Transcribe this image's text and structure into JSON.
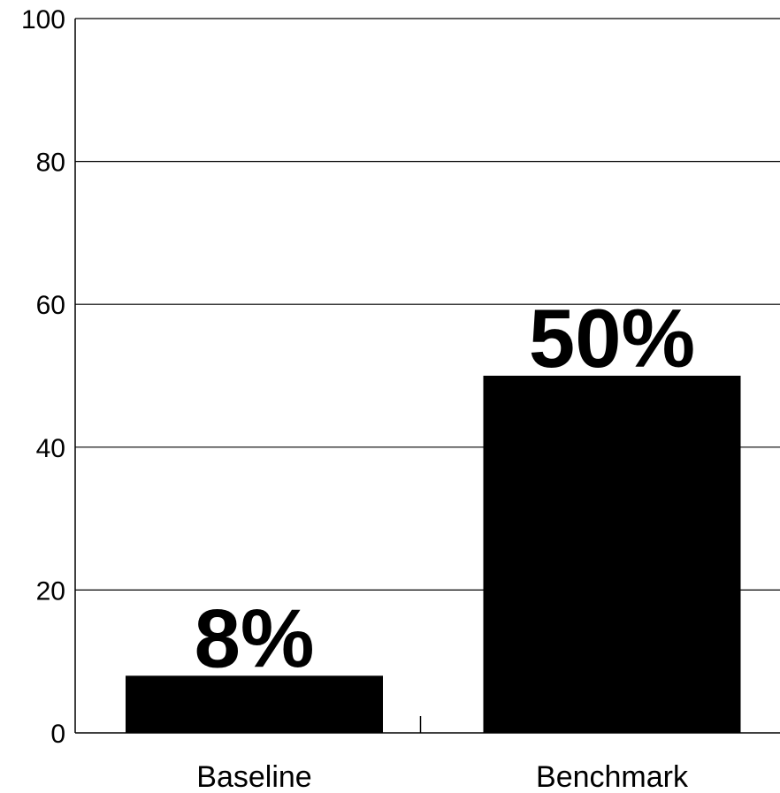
{
  "chart_data": {
    "type": "bar",
    "categories": [
      "Baseline",
      "Benchmark"
    ],
    "values": [
      8,
      50
    ],
    "data_labels": [
      "8%",
      "50%"
    ],
    "title": "",
    "xlabel": "",
    "ylabel": "",
    "ylim": [
      0,
      100
    ],
    "yticks": [
      0,
      20,
      40,
      60,
      80,
      100
    ],
    "grid": "horizontal",
    "legend": "none",
    "colors": {
      "bar": "#000000",
      "grid": "#000000",
      "text": "#000000",
      "background": "#ffffff"
    }
  }
}
